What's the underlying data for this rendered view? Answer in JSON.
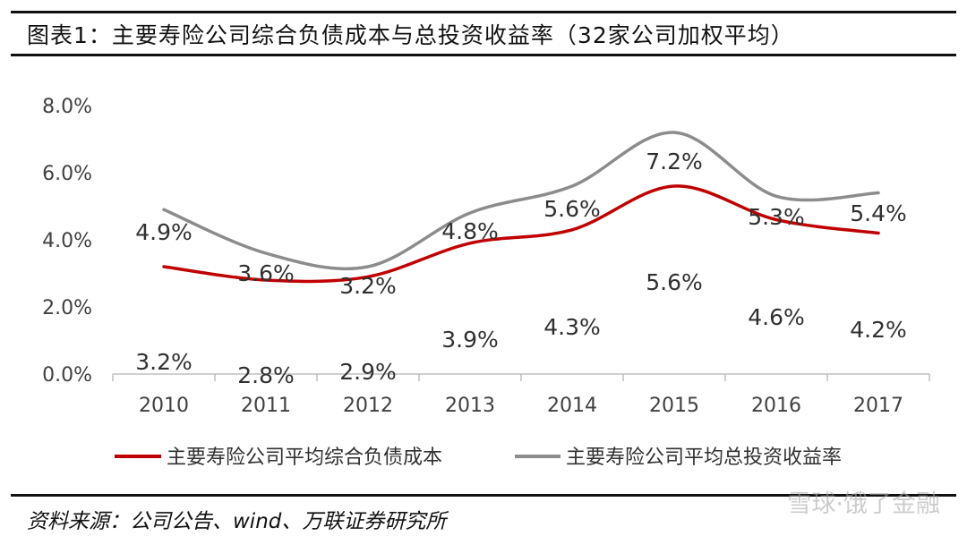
{
  "title": "图表1：主要寿险公司综合负债成本与总投资收益率（32家公司加权平均）",
  "source": "资料来源：公司公告、wind、万联证券研究所",
  "watermark": "雪球·饿了金融",
  "colors": {
    "series_red": "#c00000",
    "series_gray": "#8c8c8c",
    "axis": "#bfbfbf",
    "text": "#404040"
  },
  "chart_data": {
    "type": "line",
    "categories": [
      "2010",
      "2011",
      "2012",
      "2013",
      "2014",
      "2015",
      "2016",
      "2017"
    ],
    "series": [
      {
        "name": "主要寿险公司平均综合负债成本",
        "values": [
          3.2,
          2.8,
          2.9,
          3.9,
          4.3,
          5.6,
          4.6,
          4.2
        ],
        "labels": [
          "3.2%",
          "2.8%",
          "2.9%",
          "3.9%",
          "4.3%",
          "5.6%",
          "4.6%",
          "4.2%"
        ]
      },
      {
        "name": "主要寿险公司平均总投资收益率",
        "values": [
          4.9,
          3.6,
          3.2,
          4.8,
          5.6,
          7.2,
          5.3,
          5.4
        ],
        "labels": [
          "4.9%",
          "3.6%",
          "3.2%",
          "4.8%",
          "5.6%",
          "7.2%",
          "5.3%",
          "5.4%"
        ]
      }
    ],
    "yticks": [
      "0.0%",
      "2.0%",
      "4.0%",
      "6.0%",
      "8.0%"
    ],
    "ylim": [
      0,
      8
    ],
    "smooth": true,
    "grid": false,
    "legend": "bottom"
  }
}
